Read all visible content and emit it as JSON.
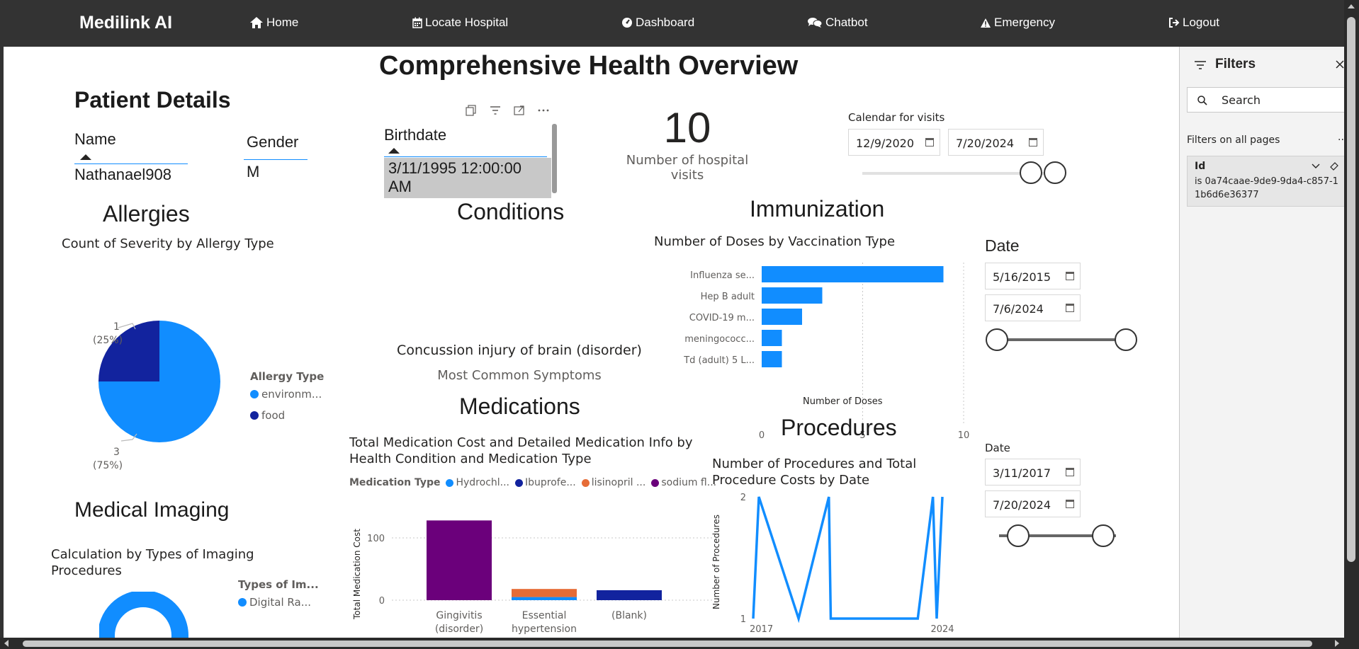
{
  "navbar": {
    "brand": "Medilink AI",
    "items": [
      {
        "label": "Home",
        "icon": "home-icon"
      },
      {
        "label": "Locate Hospital",
        "icon": "calendar-icon"
      },
      {
        "label": "Dashboard",
        "icon": "gauge-icon"
      },
      {
        "label": "Chatbot",
        "icon": "chat-icon"
      },
      {
        "label": "Emergency",
        "icon": "warning-icon"
      },
      {
        "label": "Logout",
        "icon": "logout-icon"
      }
    ]
  },
  "report": {
    "title": "Comprehensive Health Overview",
    "patient": {
      "heading": "Patient Details",
      "name_header": "Name",
      "name_value": "Nathanael908",
      "gender_header": "Gender",
      "gender_value": "M",
      "birthdate_header": "Birthdate",
      "birthdate_value": "3/11/1995 12:00:00 AM"
    },
    "visits": {
      "value": "10",
      "label": "Number of hospital visits",
      "calendar_label": "Calendar for visits",
      "start": "12/9/2020",
      "end": "7/20/2024"
    },
    "allergies": {
      "heading": "Allergies",
      "chart_title": "Count of Severity by Allergy Type",
      "legend_title": "Allergy Type",
      "label_small": "1",
      "label_small_pct": "(25%)",
      "label_large": "3",
      "label_large_pct": "(75%)"
    },
    "conditions": {
      "heading": "Conditions",
      "value": "Concussion injury of brain (disorder)",
      "label": "Most Common Symptoms"
    },
    "immunization": {
      "heading": "Immunization",
      "chart_title": "Number of Doses by Vaccination Type",
      "x_axis_title": "Number of Doses",
      "date_label": "Date",
      "start": "5/16/2015",
      "end": "7/6/2024"
    },
    "medications": {
      "heading": "Medications",
      "chart_title_1": "Total Medication Cost and Detailed Medication Info by",
      "chart_title_2": "Health Condition and Medication Type",
      "legend_title": "Medication Type",
      "y_axis_title": "Total Medication Cost"
    },
    "procedures": {
      "heading": "Procedures",
      "chart_title_1": "Number of Procedures and Total",
      "chart_title_2": "Procedure Costs by Date",
      "y_axis_title": "Number of Procedures",
      "date_label": "Date",
      "start": "3/11/2017",
      "end": "7/20/2024"
    },
    "imaging": {
      "heading": "Medical Imaging",
      "chart_title_1": "Calculation by Types of Imaging",
      "chart_title_2": "Procedures",
      "legend_title": "Types of Im...",
      "legend_item": "Digital Ra..."
    }
  },
  "filters": {
    "title": "Filters",
    "search_placeholder": "Search",
    "section_label": "Filters on all pages",
    "more": "...",
    "card_field": "Id",
    "card_value": "is 0a74caae-9de9-9da4-c857-11b6d6e36377"
  },
  "colors": {
    "accent": "#118dff",
    "navy": "#12239e",
    "orange": "#e66c37",
    "purple": "#6b007b",
    "navbar": "#333333"
  },
  "chart_data": [
    {
      "type": "pie",
      "title": "Count of Severity by Allergy Type",
      "legend_title": "Allergy Type",
      "slices": [
        {
          "name": "environm...",
          "value": 3,
          "color": "#118dff"
        },
        {
          "name": "food",
          "value": 1,
          "color": "#12239e"
        }
      ]
    },
    {
      "type": "bar",
      "orientation": "horizontal",
      "title": "Number of Doses by Vaccination Type",
      "xlabel": "Number of Doses",
      "categories": [
        "Influenza se...",
        "Hep B adult",
        "COVID-19 m...",
        "meningococc...",
        "Td (adult) 5 L..."
      ],
      "values": [
        9,
        3,
        2,
        1,
        1
      ],
      "xlim": [
        0,
        10
      ],
      "xticks": [
        "0",
        "5",
        "10"
      ]
    },
    {
      "type": "bar",
      "stacked": true,
      "title": "Total Medication Cost and Detailed Medication Info by Health Condition and Medication Type",
      "ylabel": "Total Medication Cost",
      "categories": [
        "Gingivitis (disorder)",
        "Essential hypertension",
        "(Blank)"
      ],
      "categories_lines": [
        [
          "Gingivitis",
          "(disorder)"
        ],
        [
          "Essential",
          "hypertension"
        ],
        [
          "(Blank)",
          ""
        ]
      ],
      "series": [
        {
          "name": "Hydrochl...",
          "color": "#118dff",
          "values": [
            0,
            5,
            0
          ]
        },
        {
          "name": "Ibuprofe...",
          "color": "#12239e",
          "values": [
            0,
            0,
            16
          ]
        },
        {
          "name": "lisinopril ...",
          "color": "#e66c37",
          "values": [
            0,
            13,
            0
          ]
        },
        {
          "name": "sodium fl...",
          "color": "#6b007b",
          "values": [
            128,
            0,
            0
          ]
        }
      ],
      "ylim": [
        0,
        150
      ],
      "yticks": [
        "0",
        "100"
      ]
    },
    {
      "type": "line",
      "title": "Number of Procedures and Total Procedure Costs by Date",
      "ylabel": "Number of Procedures",
      "x": [
        0,
        0.03,
        0.24,
        0.4,
        0.41,
        0.87,
        0.95,
        0.97,
        1.0
      ],
      "y": [
        1,
        2,
        1,
        2,
        1,
        1,
        2,
        1,
        2
      ],
      "xticks": [
        "2017",
        "2024"
      ],
      "yticks": [
        "1",
        "2"
      ],
      "ylim": [
        1,
        2
      ]
    },
    {
      "type": "pie",
      "donut": true,
      "title": "Calculation by Types of Imaging Procedures",
      "legend_title": "Types of Im...",
      "slices": [
        {
          "name": "Digital Ra...",
          "value": 1,
          "color": "#118dff"
        }
      ]
    }
  ]
}
